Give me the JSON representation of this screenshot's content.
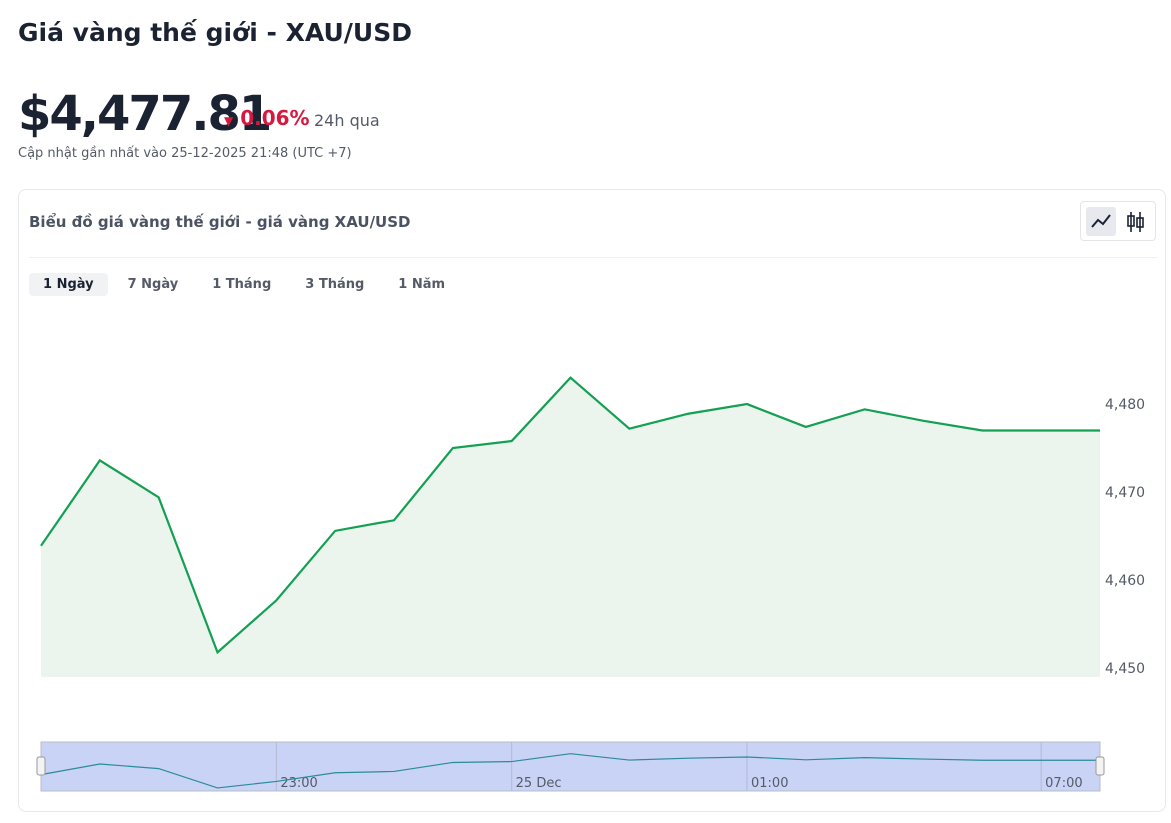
{
  "header": {
    "title": "Giá vàng thế giới - XAU/USD",
    "price": "$4,477.81",
    "change": "0.06%",
    "period": "24h qua",
    "updated": "Cập nhật gần nhất vào 25-12-2025 21:48 (UTC +7)"
  },
  "tabs": [
    "1 Ngày",
    "7 Ngày",
    "1 Tháng",
    "3 Tháng",
    "1 Năm"
  ],
  "chart_data": {
    "type": "line",
    "title": "Biểu đồ giá vàng thế giới - giá vàng XAU/USD",
    "categories": [
      null,
      null,
      null,
      null,
      "23:00",
      null,
      null,
      null,
      "25 Dec",
      null,
      null,
      null,
      "01:00",
      null,
      null,
      null,
      null,
      "07:00",
      null
    ],
    "values": [
      4463.9,
      4473.6,
      4469.4,
      4451.8,
      4457.7,
      4465.6,
      4466.8,
      4475.0,
      4475.8,
      4483.0,
      4477.2,
      4478.9,
      4480.0,
      4477.4,
      4479.4,
      4478.1,
      4477.0,
      4477.0,
      4477.0
    ],
    "color": "#14a052",
    "ylim": [
      4449,
      4490
    ],
    "yticks": [
      {
        "value": 4450,
        "label": "4,450"
      },
      {
        "value": 4460,
        "label": "4,460"
      },
      {
        "value": 4470,
        "label": "4,470"
      },
      {
        "value": 4480,
        "label": "4,480"
      }
    ]
  }
}
